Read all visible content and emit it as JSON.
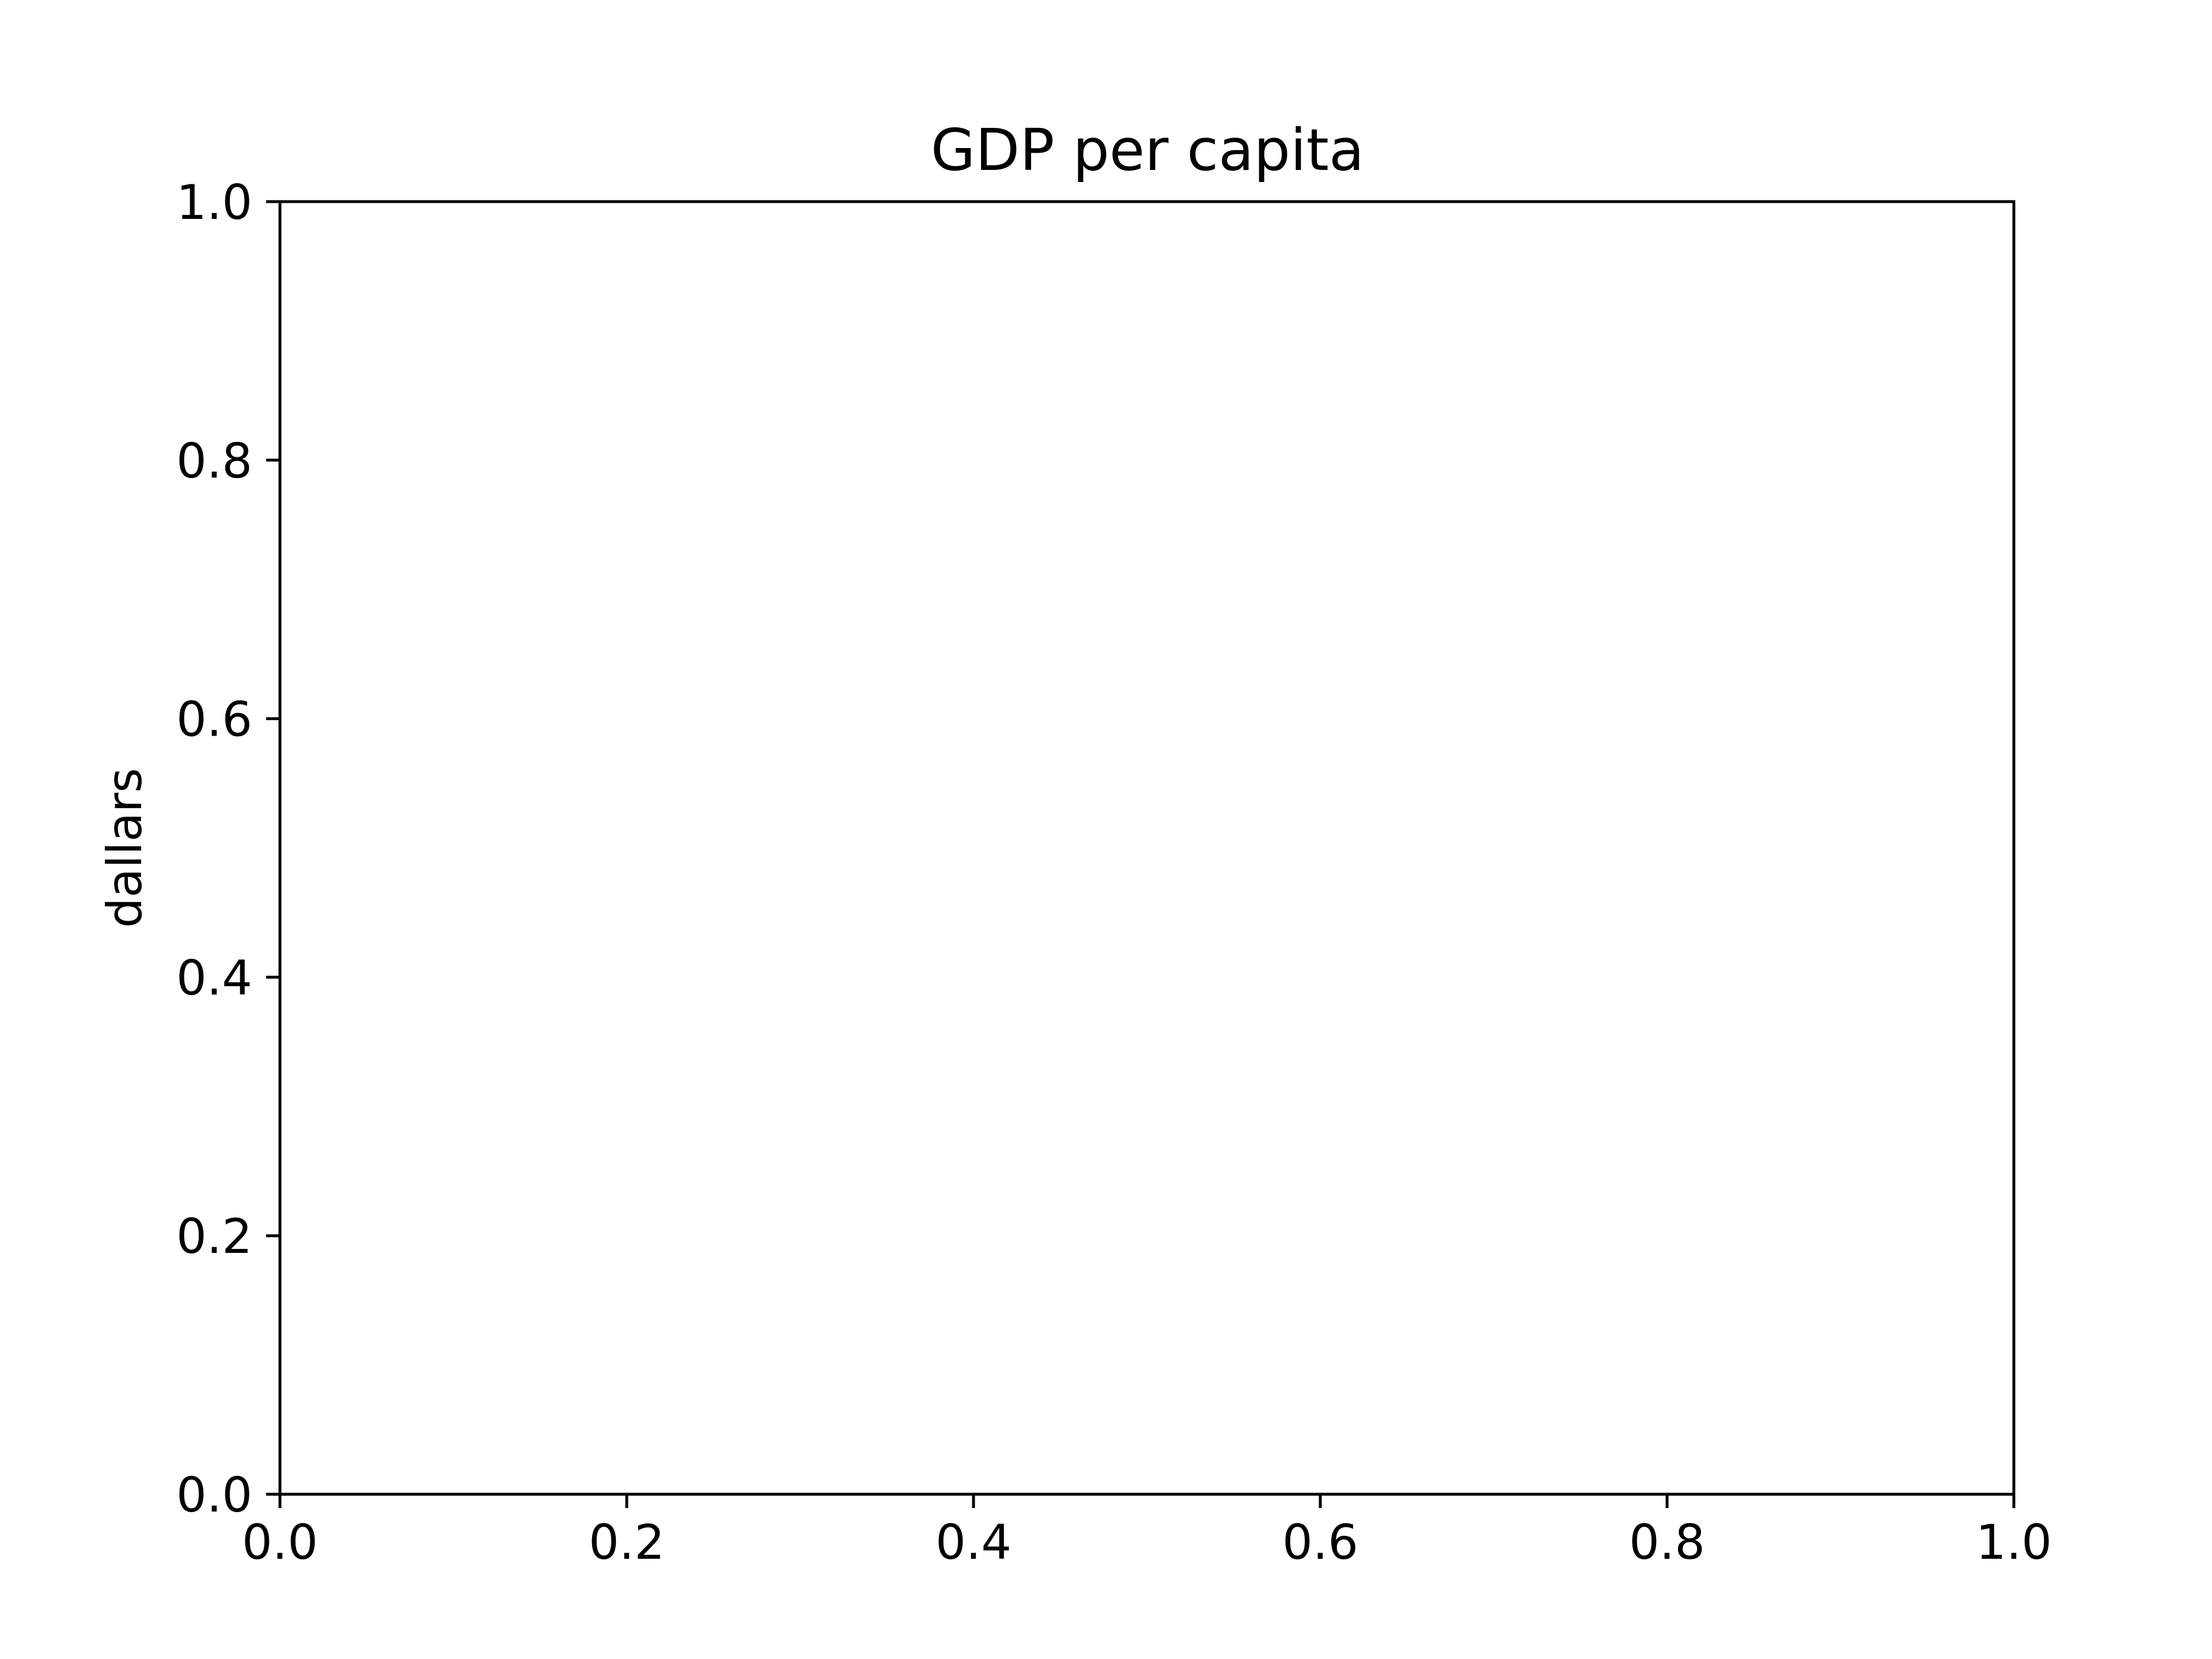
{
  "chart_data": {
    "type": "line",
    "title": "GDP per capita",
    "xlabel": "",
    "ylabel": "dallars",
    "xlim": [
      0.0,
      1.0
    ],
    "ylim": [
      0.0,
      1.0
    ],
    "xticks": [
      "0.0",
      "0.2",
      "0.4",
      "0.6",
      "0.8",
      "1.0"
    ],
    "yticks": [
      "0.0",
      "0.2",
      "0.4",
      "0.6",
      "0.8",
      "1.0"
    ],
    "grid": false,
    "series": []
  },
  "colors": {
    "background": "#ffffff",
    "axes": "#000000",
    "text": "#000000"
  }
}
